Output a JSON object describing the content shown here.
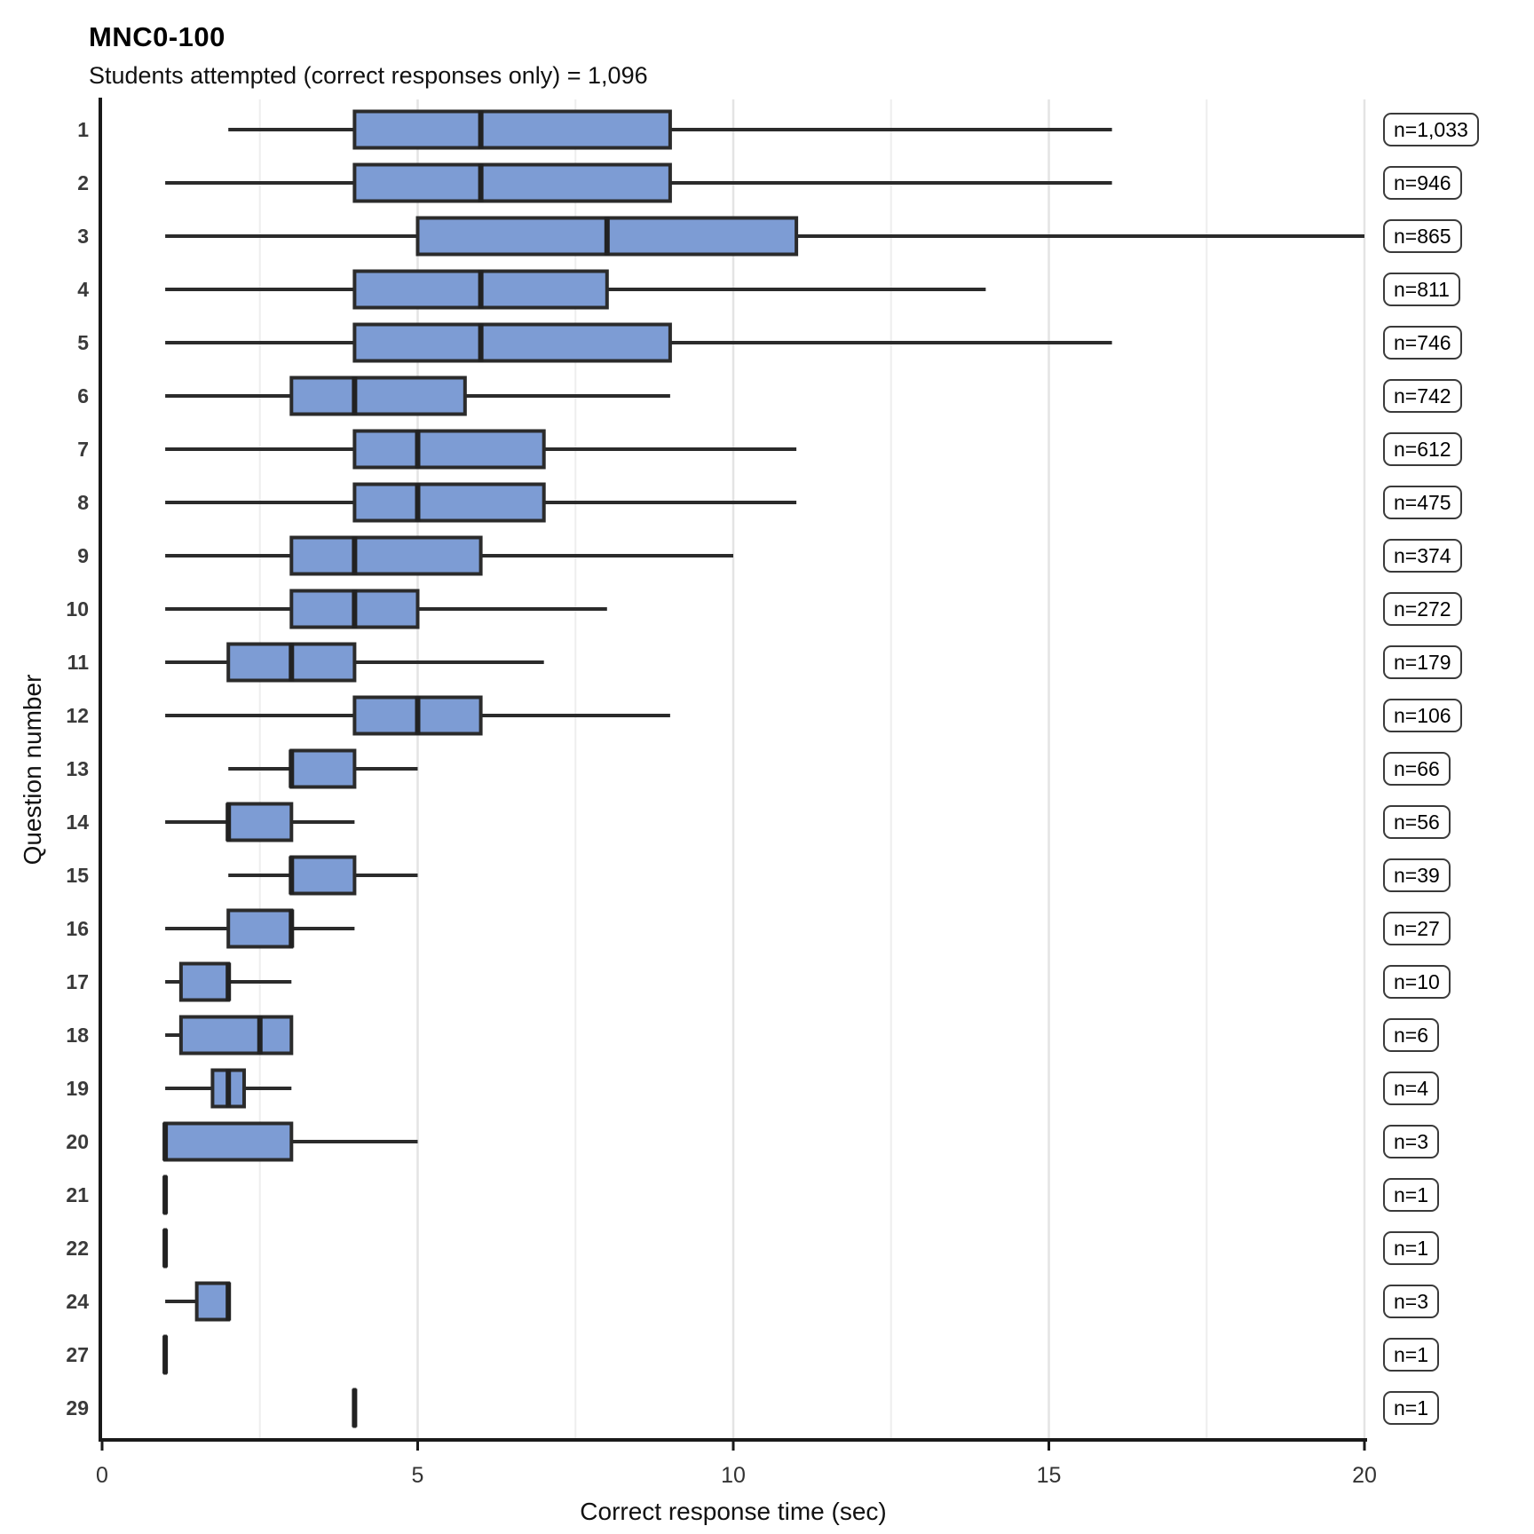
{
  "header": {
    "title": "MNC0-100",
    "subtitle": "Students attempted (correct responses only) = 1,096"
  },
  "chart_data": {
    "type": "boxplot",
    "orientation": "horizontal",
    "title": "MNC0-100",
    "subtitle": "Students attempted (correct responses only) = 1,096",
    "xlabel": "Correct response time (sec)",
    "ylabel": "Question number",
    "xlim": [
      0,
      20
    ],
    "x_ticks": [
      0,
      5,
      10,
      15,
      20
    ],
    "gridlines_minor": [
      2.5,
      7.5,
      12.5,
      17.5
    ],
    "gridlines_major": [
      5,
      10,
      15,
      20
    ],
    "grid": true,
    "legend": "none",
    "colors": {
      "box_fill": "#7d9cd4",
      "box_stroke": "#2b2b2b",
      "median_stroke": "#222222",
      "axis": "#1a1a1a",
      "grid_major": "#e4e4e4",
      "grid_minor": "#eeeeee",
      "tick_label": "#333333",
      "y_tick_label": "#3a3a3a"
    },
    "rows": [
      {
        "question": "1",
        "n_label": "n=1,033",
        "min": 2,
        "q1": 4,
        "median": 6,
        "q3": 9,
        "max": 16
      },
      {
        "question": "2",
        "n_label": "n=946",
        "min": 1,
        "q1": 4,
        "median": 6,
        "q3": 9,
        "max": 16
      },
      {
        "question": "3",
        "n_label": "n=865",
        "min": 1,
        "q1": 5,
        "median": 8,
        "q3": 11,
        "max": 20
      },
      {
        "question": "4",
        "n_label": "n=811",
        "min": 1,
        "q1": 4,
        "median": 6,
        "q3": 8,
        "max": 14
      },
      {
        "question": "5",
        "n_label": "n=746",
        "min": 1,
        "q1": 4,
        "median": 6,
        "q3": 9,
        "max": 16
      },
      {
        "question": "6",
        "n_label": "n=742",
        "min": 1,
        "q1": 3,
        "median": 4,
        "q3": 5.75,
        "max": 9
      },
      {
        "question": "7",
        "n_label": "n=612",
        "min": 1,
        "q1": 4,
        "median": 5,
        "q3": 7,
        "max": 11
      },
      {
        "question": "8",
        "n_label": "n=475",
        "min": 1,
        "q1": 4,
        "median": 5,
        "q3": 7,
        "max": 11
      },
      {
        "question": "9",
        "n_label": "n=374",
        "min": 1,
        "q1": 3,
        "median": 4,
        "q3": 6,
        "max": 10
      },
      {
        "question": "10",
        "n_label": "n=272",
        "min": 1,
        "q1": 3,
        "median": 4,
        "q3": 5,
        "max": 8
      },
      {
        "question": "11",
        "n_label": "n=179",
        "min": 1,
        "q1": 2,
        "median": 3,
        "q3": 4,
        "max": 7
      },
      {
        "question": "12",
        "n_label": "n=106",
        "min": 1,
        "q1": 4,
        "median": 5,
        "q3": 6,
        "max": 9
      },
      {
        "question": "13",
        "n_label": "n=66",
        "min": 2,
        "q1": 3,
        "median": 3,
        "q3": 4,
        "max": 5
      },
      {
        "question": "14",
        "n_label": "n=56",
        "min": 1,
        "q1": 2,
        "median": 2,
        "q3": 3,
        "max": 4
      },
      {
        "question": "15",
        "n_label": "n=39",
        "min": 2,
        "q1": 3,
        "median": 3,
        "q3": 4,
        "max": 5
      },
      {
        "question": "16",
        "n_label": "n=27",
        "min": 1,
        "q1": 2,
        "median": 3,
        "q3": 3,
        "max": 4
      },
      {
        "question": "17",
        "n_label": "n=10",
        "min": 1,
        "q1": 1.25,
        "median": 2,
        "q3": 2,
        "max": 3
      },
      {
        "question": "18",
        "n_label": "n=6",
        "min": 1,
        "q1": 1.25,
        "median": 2.5,
        "q3": 3,
        "max": 3
      },
      {
        "question": "19",
        "n_label": "n=4",
        "min": 1,
        "q1": 1.75,
        "median": 2,
        "q3": 2.25,
        "max": 3
      },
      {
        "question": "20",
        "n_label": "n=3",
        "min": 1,
        "q1": 1,
        "median": 1,
        "q3": 3,
        "max": 5
      },
      {
        "question": "21",
        "n_label": "n=1",
        "min": 1,
        "q1": 1,
        "median": 1,
        "q3": 1,
        "max": 1
      },
      {
        "question": "22",
        "n_label": "n=1",
        "min": 1,
        "q1": 1,
        "median": 1,
        "q3": 1,
        "max": 1
      },
      {
        "question": "24",
        "n_label": "n=3",
        "min": 1,
        "q1": 1.5,
        "median": 2,
        "q3": 2,
        "max": 2
      },
      {
        "question": "27",
        "n_label": "n=1",
        "min": 1,
        "q1": 1,
        "median": 1,
        "q3": 1,
        "max": 1
      },
      {
        "question": "29",
        "n_label": "n=1",
        "min": 4,
        "q1": 4,
        "median": 4,
        "q3": 4,
        "max": 4
      }
    ]
  }
}
